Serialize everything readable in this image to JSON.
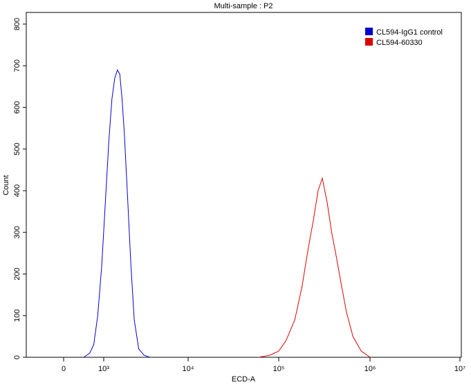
{
  "chart_data": {
    "type": "line",
    "title": "Multi-sample : P2",
    "x_label": "ECD-A",
    "y_label": "Count",
    "series": [
      {
        "name": "CL594-IgG1 control",
        "color": "#0000cc",
        "x": [
          500,
          650,
          750,
          850,
          950,
          1050,
          1150,
          1250,
          1350,
          1450,
          1550,
          1650,
          1750,
          1900,
          2100,
          2300,
          2600,
          3000,
          3500
        ],
        "values": [
          0,
          10,
          30,
          100,
          220,
          380,
          520,
          620,
          670,
          690,
          680,
          620,
          540,
          400,
          220,
          90,
          20,
          5,
          0
        ]
      },
      {
        "name": "CL594-60330",
        "color": "#dd0000",
        "x": [
          60000,
          80000,
          100000,
          120000,
          150000,
          180000,
          210000,
          240000,
          270000,
          300000,
          340000,
          380000,
          420000,
          480000,
          550000,
          650000,
          800000,
          1000000
        ],
        "values": [
          0,
          5,
          15,
          40,
          90,
          170,
          260,
          330,
          400,
          430,
          370,
          300,
          250,
          180,
          110,
          50,
          15,
          0
        ]
      }
    ],
    "xlim": [
      -930,
      10000000
    ],
    "xticks": [
      0,
      {
        "value": 1000,
        "label": "10³"
      },
      {
        "value": 10000,
        "label": "10⁴"
      },
      {
        "value": 100000,
        "label": "10⁵"
      },
      {
        "value": 1000000,
        "label": "10⁶"
      },
      {
        "value": 10000000,
        "label": "10⁷"
      }
    ],
    "x_scale": "biexponential",
    "ylim": [
      0,
      828
    ],
    "yticks": [
      0,
      100,
      200,
      300,
      400,
      500,
      600,
      700,
      800
    ],
    "legend": "top-right"
  }
}
